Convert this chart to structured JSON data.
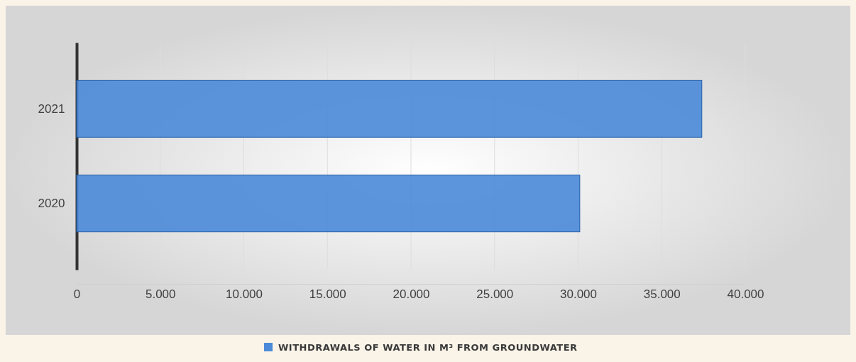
{
  "chart_data": {
    "type": "bar",
    "orientation": "horizontal",
    "categories": [
      "2021",
      "2020"
    ],
    "series": [
      {
        "name": "WITHDRAWALS OF WATER IN M³ FROM GROUNDWATER",
        "color": "#4a8ad8",
        "values": [
          37400,
          30100
        ]
      }
    ],
    "xlim": [
      0,
      40000
    ],
    "xticks": [
      0,
      {
        "value": 5000,
        "label": "5.000"
      },
      {
        "value": 10000,
        "label": "10.000"
      },
      {
        "value": 15000,
        "label": "15.000"
      },
      {
        "value": 20000,
        "label": "20.000"
      },
      {
        "value": 25000,
        "label": "25.000"
      },
      {
        "value": 30000,
        "label": "30.000"
      },
      {
        "value": 35000,
        "label": "35.000"
      },
      {
        "value": 40000,
        "label": "40.000"
      }
    ],
    "grid": "x",
    "legend": "bottom"
  }
}
